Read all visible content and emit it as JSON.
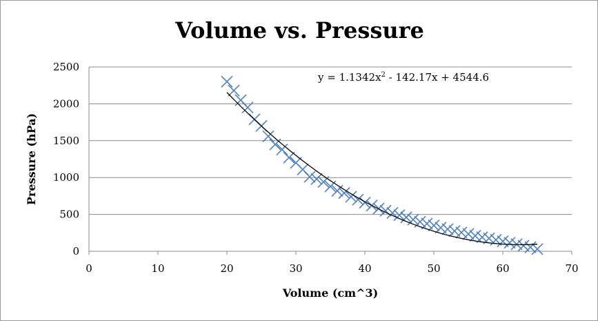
{
  "chart_data": {
    "type": "scatter",
    "title": "Volume vs. Pressure",
    "xlabel": "Volume (cm^3)",
    "ylabel": "Pressure (hPa)",
    "xlim": [
      0,
      70
    ],
    "ylim": [
      0,
      2500
    ],
    "xticks": [
      0,
      10,
      20,
      30,
      40,
      50,
      60,
      70
    ],
    "yticks": [
      0,
      500,
      1000,
      1500,
      2000,
      2500
    ],
    "grid": "horizontal",
    "marker": "x",
    "marker_color": "#4f81bd",
    "trendline": {
      "type": "polynomial",
      "order": 2,
      "coefficients": [
        1.1342,
        -142.17,
        4544.6
      ],
      "equation_base": "y = 1.1342x",
      "equation_sup": "2",
      "equation_tail": " - 142.17x + 4544.6",
      "color": "#000000"
    },
    "points": [
      [
        20,
        2300
      ],
      [
        21,
        2180
      ],
      [
        22,
        2050
      ],
      [
        23,
        1950
      ],
      [
        24,
        1790
      ],
      [
        25,
        1700
      ],
      [
        26,
        1560
      ],
      [
        27,
        1450
      ],
      [
        28,
        1380
      ],
      [
        29,
        1270
      ],
      [
        30,
        1200
      ],
      [
        31,
        1110
      ],
      [
        32,
        1010
      ],
      [
        33,
        980
      ],
      [
        34,
        940
      ],
      [
        35,
        880
      ],
      [
        36,
        820
      ],
      [
        37,
        790
      ],
      [
        38,
        740
      ],
      [
        39,
        700
      ],
      [
        40,
        660
      ],
      [
        41,
        620
      ],
      [
        42,
        580
      ],
      [
        43,
        550
      ],
      [
        44,
        520
      ],
      [
        45,
        490
      ],
      [
        46,
        460
      ],
      [
        47,
        430
      ],
      [
        48,
        400
      ],
      [
        49,
        375
      ],
      [
        50,
        350
      ],
      [
        51,
        320
      ],
      [
        52,
        300
      ],
      [
        53,
        275
      ],
      [
        54,
        255
      ],
      [
        55,
        235
      ],
      [
        56,
        210
      ],
      [
        57,
        190
      ],
      [
        58,
        175
      ],
      [
        59,
        155
      ],
      [
        60,
        135
      ],
      [
        61,
        115
      ],
      [
        62,
        95
      ],
      [
        63,
        75
      ],
      [
        64,
        55
      ],
      [
        65,
        30
      ]
    ]
  }
}
